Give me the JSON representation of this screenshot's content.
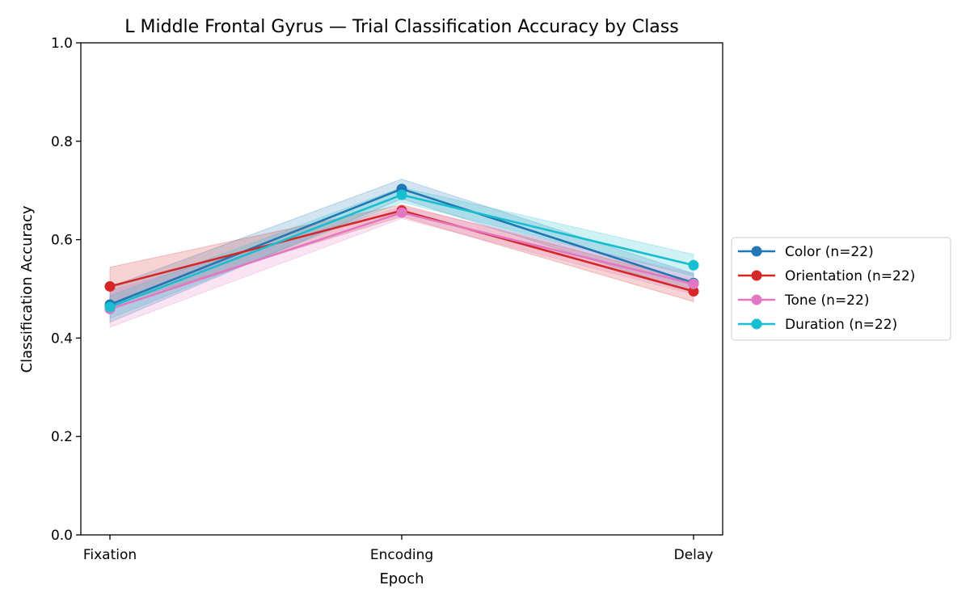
{
  "chart_data": {
    "type": "line",
    "title": "L Middle Frontal Gyrus — Trial Classification Accuracy by Class",
    "xlabel": "Epoch",
    "ylabel": "Classification Accuracy",
    "categories": [
      "Fixation",
      "Encoding",
      "Delay"
    ],
    "ylim": [
      0,
      1
    ],
    "yticks": [
      0.0,
      0.2,
      0.4,
      0.6,
      0.8,
      1.0
    ],
    "ytick_labels": [
      "0.0",
      "0.2",
      "0.4",
      "0.6",
      "0.8",
      "1.0"
    ],
    "grid": false,
    "legend_position": "right, outside plot",
    "series": [
      {
        "name": "Color (n=22)",
        "color": "#1f77b4",
        "values": [
          0.468,
          0.703,
          0.512
        ],
        "lower": [
          0.432,
          0.683,
          0.493
        ],
        "upper": [
          0.504,
          0.723,
          0.531
        ]
      },
      {
        "name": "Orientation (n=22)",
        "color": "#d62728",
        "values": [
          0.505,
          0.659,
          0.495
        ],
        "lower": [
          0.466,
          0.647,
          0.474
        ],
        "upper": [
          0.544,
          0.671,
          0.516
        ]
      },
      {
        "name": "Tone (n=22)",
        "color": "#e377c2",
        "values": [
          0.459,
          0.655,
          0.51
        ],
        "lower": [
          0.422,
          0.643,
          0.489
        ],
        "upper": [
          0.496,
          0.667,
          0.531
        ]
      },
      {
        "name": "Duration (n=22)",
        "color": "#17becf",
        "values": [
          0.463,
          0.691,
          0.548
        ],
        "lower": [
          0.44,
          0.676,
          0.526
        ],
        "upper": [
          0.486,
          0.706,
          0.57
        ]
      }
    ]
  }
}
